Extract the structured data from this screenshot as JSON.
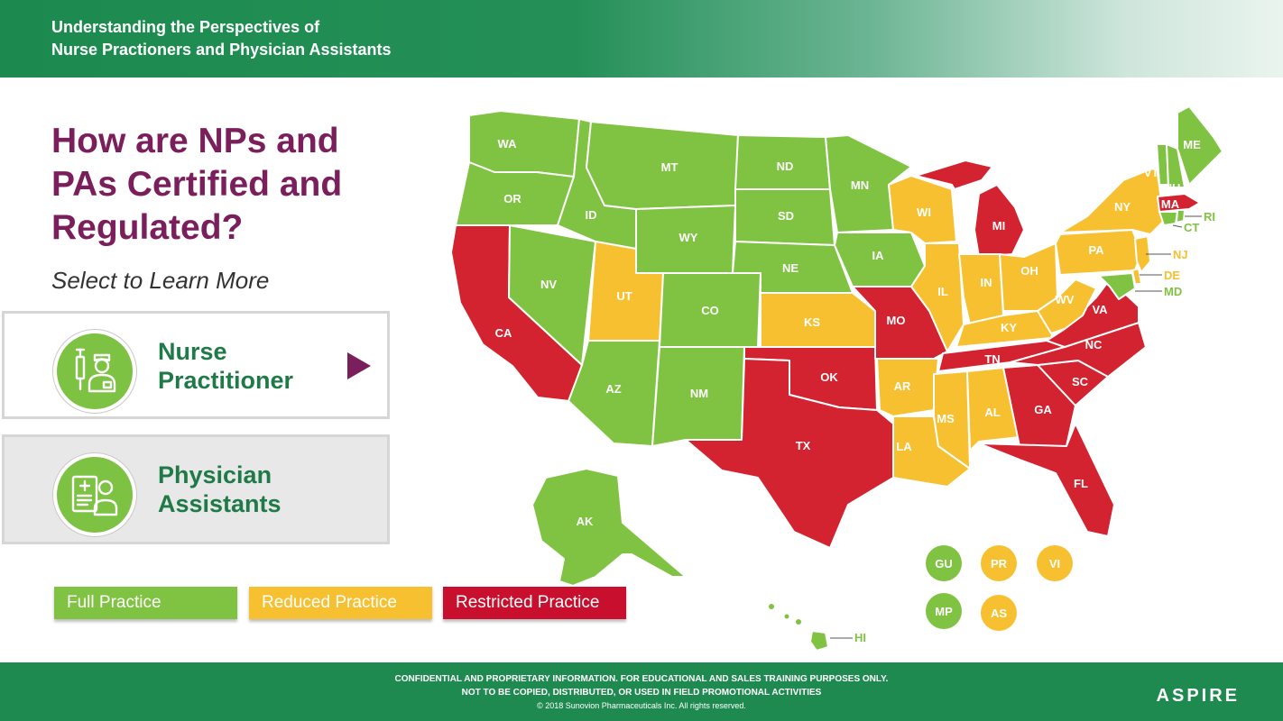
{
  "header": {
    "line1": "Understanding the Perspectives of",
    "line2": "Nurse Practioners and Physician Assistants"
  },
  "heading": {
    "line1": "How are NPs and",
    "line2": "PAs Certified and",
    "line3": "Regulated?"
  },
  "subheading": "Select to Learn More",
  "cards": {
    "np": {
      "line1": "Nurse",
      "line2": "Practitioner",
      "icon": "nurse-icon"
    },
    "pa": {
      "line1": "Physician",
      "line2": "Assistants",
      "icon": "physician-assistant-icon"
    }
  },
  "legend": {
    "full": "Full Practice",
    "reduced": "Reduced Practice",
    "restricted": "Restricted Practice"
  },
  "colors": {
    "full": "#80c342",
    "reduced": "#f6c030",
    "restricted": "#d32330",
    "header_green": "#1f8a4f",
    "heading_purple": "#7a1f5c"
  },
  "states": {
    "WA": "WA",
    "OR": "OR",
    "CA": "CA",
    "NV": "NV",
    "ID": "ID",
    "MT": "MT",
    "WY": "WY",
    "UT": "UT",
    "AZ": "AZ",
    "CO": "CO",
    "NM": "NM",
    "ND": "ND",
    "SD": "SD",
    "NE": "NE",
    "KS": "KS",
    "OK": "OK",
    "TX": "TX",
    "MN": "MN",
    "IA": "IA",
    "MO": "MO",
    "AR": "AR",
    "LA": "LA",
    "WI": "WI",
    "IL": "IL",
    "MS": "MS",
    "MI": "MI",
    "IN": "IN",
    "OH": "OH",
    "KY": "KY",
    "TN": "TN",
    "AL": "AL",
    "GA": "GA",
    "FL": "FL",
    "SC": "SC",
    "NC": "NC",
    "VA": "VA",
    "WV": "WV",
    "PA": "PA",
    "NY": "NY",
    "VT": "VT",
    "NH": "NH",
    "ME": "ME",
    "MA": "MA",
    "RI": "RI",
    "CT": "CT",
    "NJ": "NJ",
    "DE": "DE",
    "MD": "MD",
    "AK": "AK",
    "HI": "HI"
  },
  "territories": {
    "GU": "GU",
    "PR": "PR",
    "VI": "VI",
    "MP": "MP",
    "AS": "AS"
  },
  "footer": {
    "line1": "CONFIDENTIAL AND PROPRIETARY INFORMATION. FOR EDUCATIONAL AND SALES TRAINING PURPOSES ONLY.",
    "line2": "NOT TO BE COPIED, DISTRIBUTED, OR USED IN FIELD PROMOTIONAL ACTIVITIES",
    "line3": "© 2018 Sunovion Pharmaceuticals Inc. All rights reserved.",
    "logo": "ASPIRE"
  }
}
